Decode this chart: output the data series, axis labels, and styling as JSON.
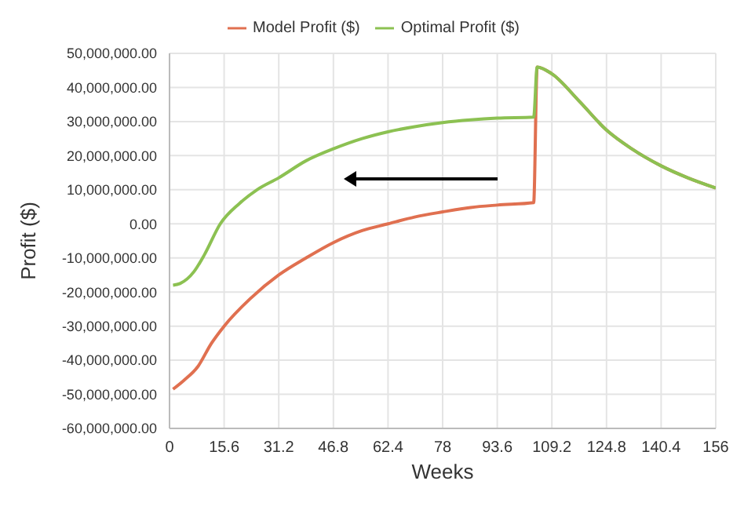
{
  "chart_data": {
    "type": "line",
    "xlabel": "Weeks",
    "ylabel": "Profit ($)",
    "xlim": [
      0,
      156
    ],
    "xticks": [
      0,
      15.6,
      31.2,
      46.8,
      62.4,
      78,
      93.6,
      109.2,
      124.8,
      140.4,
      156
    ],
    "ylim": [
      -60000000,
      50000000
    ],
    "yticks": [
      {
        "value": -60000000,
        "label": "-60,000,000.00"
      },
      {
        "value": -50000000,
        "label": "-50,000,000.00"
      },
      {
        "value": -40000000,
        "label": "-40,000,000.00"
      },
      {
        "value": -30000000,
        "label": "-30,000,000.00"
      },
      {
        "value": -20000000,
        "label": "-20,000,000.00"
      },
      {
        "value": -10000000,
        "label": "-10,000,000.00"
      },
      {
        "value": 0,
        "label": "0.00"
      },
      {
        "value": 10000000,
        "label": "10,000,000.00"
      },
      {
        "value": 20000000,
        "label": "20,000,000.00"
      },
      {
        "value": 30000000,
        "label": "30,000,000.00"
      },
      {
        "value": 40000000,
        "label": "40,000,000.00"
      },
      {
        "value": 50000000,
        "label": "50,000,000.00"
      }
    ],
    "grid": true,
    "legend": "top",
    "marker": "none",
    "line_style": "solid",
    "series": [
      {
        "name": "Model Profit ($)",
        "color": "#e07050",
        "x": [
          1,
          4,
          8,
          12,
          15.6,
          23,
          31.2,
          39,
          46.8,
          55,
          62.4,
          70,
          78,
          86,
          93.6,
          104,
          105,
          109.2,
          117,
          124.8,
          132,
          140.4,
          148,
          156
        ],
        "values": [
          -48500000,
          -46000000,
          -42000000,
          -35000000,
          -30000000,
          -22000000,
          -15000000,
          -10000000,
          -5500000,
          -2000000,
          0,
          2000000,
          3500000,
          4800000,
          5500000,
          6200000,
          46000000,
          44000000,
          36000000,
          27500000,
          22000000,
          17000000,
          13500000,
          10500000
        ]
      },
      {
        "name": "Optimal Profit ($)",
        "color": "#8cc152",
        "x": [
          1,
          3,
          7,
          10,
          14.5,
          20,
          25,
          31.2,
          39,
          46.8,
          55,
          62.4,
          70,
          78,
          86,
          93.6,
          104,
          105,
          109.2,
          117,
          124.8,
          132,
          140.4,
          148,
          156
        ],
        "values": [
          -18000000,
          -17500000,
          -14000000,
          -9000000,
          0,
          6000000,
          10000000,
          13500000,
          18500000,
          22000000,
          25000000,
          27000000,
          28500000,
          29700000,
          30500000,
          31000000,
          31300000,
          46000000,
          44000000,
          36000000,
          27500000,
          22000000,
          17000000,
          13500000,
          10500000
        ]
      }
    ]
  }
}
